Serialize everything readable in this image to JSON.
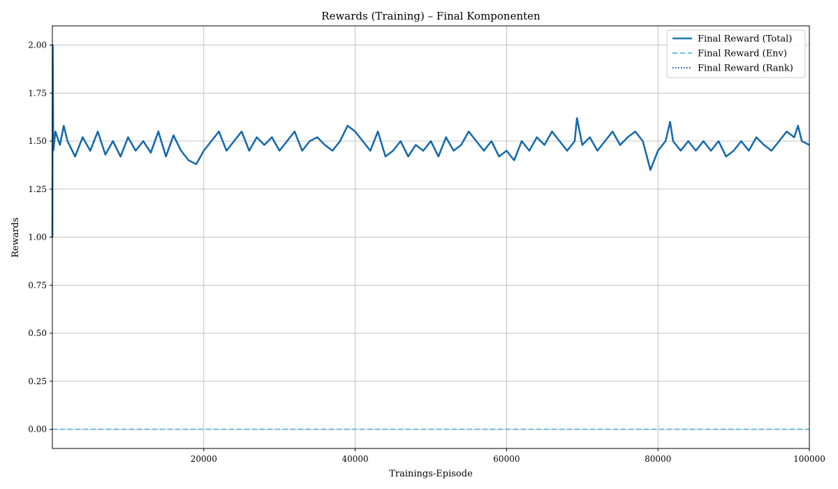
{
  "chart_data": {
    "type": "line",
    "title": "Rewards (Training) – Final Komponenten",
    "xlabel": "Trainings-Episode",
    "ylabel": "Rewards",
    "xlim": [
      0,
      100000
    ],
    "ylim": [
      -0.1,
      2.1
    ],
    "grid": true,
    "legend_position": "top-right",
    "x_ticks": [
      20000,
      40000,
      60000,
      80000,
      100000
    ],
    "x_tick_labels": [
      "20000",
      "40000",
      "60000",
      "80000",
      "100000"
    ],
    "y_ticks": [
      0.0,
      0.25,
      0.5,
      0.75,
      1.0,
      1.25,
      1.5,
      1.75,
      2.0
    ],
    "y_tick_labels": [
      "0.00",
      "0.25",
      "0.50",
      "0.75",
      "1.00",
      "1.25",
      "1.50",
      "1.75",
      "2.00"
    ],
    "series": [
      {
        "name": "Final Reward (Total)",
        "style": "solid",
        "color": "#1f77b4",
        "x": [
          0,
          50,
          120,
          400,
          1000,
          1500,
          2000,
          3000,
          4000,
          5000,
          6000,
          7000,
          8000,
          9000,
          10000,
          11000,
          12000,
          13000,
          14000,
          15000,
          16000,
          17000,
          18000,
          19000,
          20000,
          21000,
          22000,
          23000,
          24000,
          25000,
          26000,
          27000,
          28000,
          29000,
          30000,
          31000,
          32000,
          33000,
          34000,
          35000,
          36000,
          37000,
          38000,
          39000,
          40000,
          41000,
          42000,
          43000,
          44000,
          45000,
          46000,
          47000,
          48000,
          49000,
          50000,
          51000,
          52000,
          53000,
          54000,
          55000,
          56000,
          57000,
          58000,
          59000,
          60000,
          61000,
          62000,
          63000,
          64000,
          65000,
          66000,
          67000,
          68000,
          69000,
          69300,
          70000,
          71000,
          72000,
          73000,
          74000,
          75000,
          76000,
          77000,
          78000,
          79000,
          80000,
          81000,
          81600,
          82000,
          83000,
          84000,
          85000,
          86000,
          87000,
          88000,
          89000,
          90000,
          91000,
          92000,
          93000,
          94000,
          95000,
          96000,
          97000,
          98000,
          98500,
          99000,
          100000
        ],
        "values": [
          1.0,
          2.0,
          1.45,
          1.55,
          1.48,
          1.58,
          1.5,
          1.42,
          1.52,
          1.45,
          1.55,
          1.43,
          1.5,
          1.42,
          1.52,
          1.45,
          1.5,
          1.44,
          1.55,
          1.42,
          1.53,
          1.45,
          1.4,
          1.38,
          1.45,
          1.5,
          1.55,
          1.45,
          1.5,
          1.55,
          1.45,
          1.52,
          1.48,
          1.52,
          1.45,
          1.5,
          1.55,
          1.45,
          1.5,
          1.52,
          1.48,
          1.45,
          1.5,
          1.58,
          1.55,
          1.5,
          1.45,
          1.55,
          1.42,
          1.45,
          1.5,
          1.42,
          1.48,
          1.45,
          1.5,
          1.42,
          1.52,
          1.45,
          1.48,
          1.55,
          1.5,
          1.45,
          1.5,
          1.42,
          1.45,
          1.4,
          1.5,
          1.45,
          1.52,
          1.48,
          1.55,
          1.5,
          1.45,
          1.5,
          1.62,
          1.48,
          1.52,
          1.45,
          1.5,
          1.55,
          1.48,
          1.52,
          1.55,
          1.5,
          1.35,
          1.45,
          1.5,
          1.6,
          1.5,
          1.45,
          1.5,
          1.45,
          1.5,
          1.45,
          1.5,
          1.42,
          1.45,
          1.5,
          1.45,
          1.52,
          1.48,
          1.45,
          1.5,
          1.55,
          1.52,
          1.58,
          1.5,
          1.48
        ]
      },
      {
        "name": "Final Reward (Env)",
        "style": "dashed",
        "color": "#5ab4d6",
        "x": [
          0,
          100000
        ],
        "values": [
          0.0,
          0.0
        ]
      },
      {
        "name": "Final Reward (Rank)",
        "style": "dotted",
        "color": "#08519c",
        "x": [
          0,
          50,
          120,
          400,
          1000,
          1500,
          2000,
          3000,
          4000,
          5000,
          6000,
          7000,
          8000,
          9000,
          10000,
          11000,
          12000,
          13000,
          14000,
          15000,
          16000,
          17000,
          18000,
          19000,
          20000,
          21000,
          22000,
          23000,
          24000,
          25000,
          26000,
          27000,
          28000,
          29000,
          30000,
          31000,
          32000,
          33000,
          34000,
          35000,
          36000,
          37000,
          38000,
          39000,
          40000,
          41000,
          42000,
          43000,
          44000,
          45000,
          46000,
          47000,
          48000,
          49000,
          50000,
          51000,
          52000,
          53000,
          54000,
          55000,
          56000,
          57000,
          58000,
          59000,
          60000,
          61000,
          62000,
          63000,
          64000,
          65000,
          66000,
          67000,
          68000,
          69000,
          69300,
          70000,
          71000,
          72000,
          73000,
          74000,
          75000,
          76000,
          77000,
          78000,
          79000,
          80000,
          81000,
          81600,
          82000,
          83000,
          84000,
          85000,
          86000,
          87000,
          88000,
          89000,
          90000,
          91000,
          92000,
          93000,
          94000,
          95000,
          96000,
          97000,
          98000,
          98500,
          99000,
          100000
        ],
        "values": [
          1.0,
          2.0,
          1.45,
          1.55,
          1.48,
          1.58,
          1.5,
          1.42,
          1.52,
          1.45,
          1.55,
          1.43,
          1.5,
          1.42,
          1.52,
          1.45,
          1.5,
          1.44,
          1.55,
          1.42,
          1.53,
          1.45,
          1.4,
          1.38,
          1.45,
          1.5,
          1.55,
          1.45,
          1.5,
          1.55,
          1.45,
          1.52,
          1.48,
          1.52,
          1.45,
          1.5,
          1.55,
          1.45,
          1.5,
          1.52,
          1.48,
          1.45,
          1.5,
          1.58,
          1.55,
          1.5,
          1.45,
          1.55,
          1.42,
          1.45,
          1.5,
          1.42,
          1.48,
          1.45,
          1.5,
          1.42,
          1.52,
          1.45,
          1.48,
          1.55,
          1.5,
          1.45,
          1.5,
          1.42,
          1.45,
          1.4,
          1.5,
          1.45,
          1.52,
          1.48,
          1.55,
          1.5,
          1.45,
          1.5,
          1.62,
          1.48,
          1.52,
          1.45,
          1.5,
          1.55,
          1.48,
          1.52,
          1.55,
          1.5,
          1.35,
          1.45,
          1.5,
          1.6,
          1.5,
          1.45,
          1.5,
          1.45,
          1.5,
          1.45,
          1.5,
          1.42,
          1.45,
          1.5,
          1.45,
          1.52,
          1.48,
          1.45,
          1.5,
          1.55,
          1.52,
          1.58,
          1.5,
          1.48
        ]
      }
    ]
  }
}
